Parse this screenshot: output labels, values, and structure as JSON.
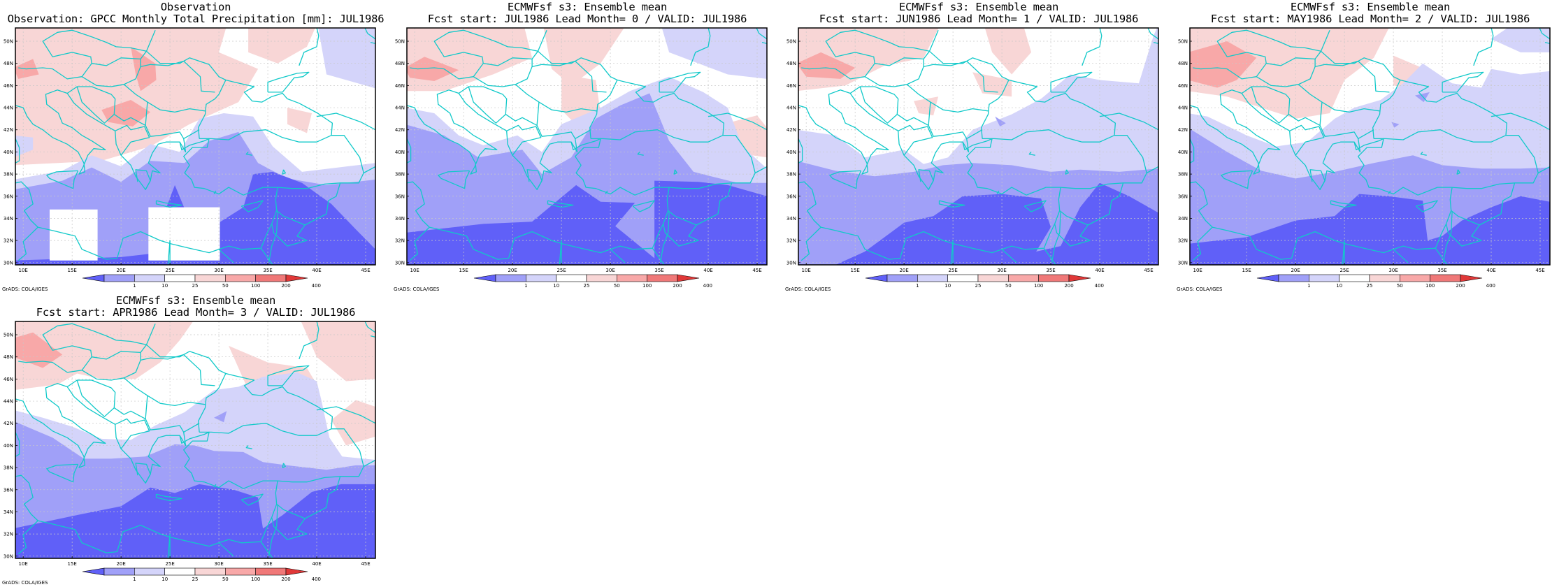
{
  "credit": "GrADS: COLA/IGES",
  "colors": {
    "coast": "#11c9c9",
    "frame": "#000000",
    "grid": "#c8c8c8",
    "b3": "#6060f8",
    "b2": "#a0a0f8",
    "b1": "#d4d4fa",
    "w": "#ffffff",
    "r1": "#f8d6d6",
    "r2": "#f8a8a8",
    "r3": "#f07878"
  },
  "axis": {
    "lat_labels": [
      "30N",
      "32N",
      "34N",
      "36N",
      "38N",
      "40N",
      "42N",
      "44N",
      "46N",
      "48N",
      "50N"
    ],
    "lon_labels": [
      "10E",
      "15E",
      "20E",
      "25E",
      "30E",
      "35E",
      "40E",
      "45E"
    ]
  },
  "colorbar": {
    "labels": [
      "1",
      "10",
      "25",
      "50",
      "100",
      "200",
      "400"
    ],
    "colors": [
      "#6060f8",
      "#a0a0f8",
      "#d4d4fa",
      "#ffffff",
      "#f8d6d6",
      "#f8a8a8",
      "#f07878",
      "#e03838"
    ]
  },
  "panels": [
    {
      "line1": "Observation",
      "line2": "Observation: GPCC Monthly Total Precipitation [mm]: JUL1986"
    },
    {
      "line1": "ECMWFsf s3: Ensemble mean",
      "line2": "Fcst start: JUL1986  Lead Month= 0 / VALID: JUL1986"
    },
    {
      "line1": "ECMWFsf s3: Ensemble mean",
      "line2": "Fcst start: JUN1986  Lead Month= 1 / VALID: JUL1986"
    },
    {
      "line1": "ECMWFsf s3: Ensemble mean",
      "line2": "Fcst start: MAY1986  Lead Month= 2 / VALID: JUL1986"
    },
    {
      "line1": "ECMWFsf s3: Ensemble mean",
      "line2": "Fcst start: APR1986  Lead Month= 3 / VALID: JUL1986"
    }
  ]
}
